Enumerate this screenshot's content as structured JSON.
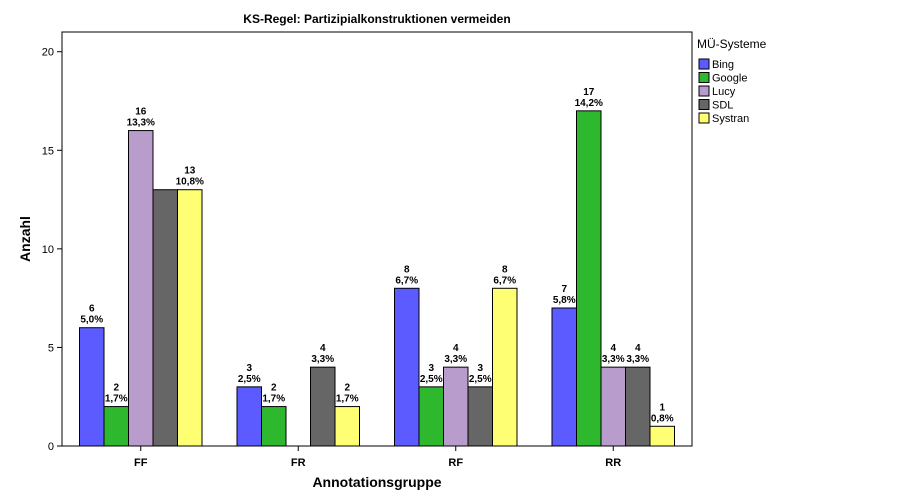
{
  "chart_data": {
    "type": "bar",
    "title": "KS-Regel: Partizipialkonstruktionen vermeiden",
    "xlabel": "Annotationsgruppe",
    "ylabel": "Anzahl",
    "ylim": [
      0,
      21
    ],
    "yticks": [
      0,
      5,
      10,
      15,
      20
    ],
    "categories": [
      "FF",
      "FR",
      "RF",
      "RR"
    ],
    "legend": {
      "title": "MÜ-Systeme",
      "position": "right"
    },
    "series": [
      {
        "name": "Bing",
        "color": "#5b5bff",
        "values": [
          6,
          3,
          8,
          7
        ],
        "labels": [
          "5,0%",
          "2,5%",
          "6,7%",
          "5,8%"
        ]
      },
      {
        "name": "Google",
        "color": "#2eb82e",
        "values": [
          2,
          2,
          3,
          17
        ],
        "labels": [
          "1,7%",
          "1,7%",
          "2,5%",
          "14,2%"
        ]
      },
      {
        "name": "Lucy",
        "color": "#b89ccc",
        "values": [
          16,
          0,
          4,
          4
        ],
        "labels": [
          "13,3%",
          "",
          "3,3%",
          "3,3%"
        ]
      },
      {
        "name": "SDL",
        "color": "#666666",
        "values": [
          13,
          4,
          3,
          4
        ],
        "labels": [
          "",
          "3,3%",
          "2,5%",
          "3,3%"
        ]
      },
      {
        "name": "Systran",
        "color": "#ffff73",
        "values": [
          13,
          2,
          8,
          1
        ],
        "labels": [
          "10,8%",
          "1,7%",
          "6,7%",
          "0,8%"
        ]
      }
    ],
    "show_label": [
      [
        true,
        true,
        true,
        true
      ],
      [
        true,
        true,
        true,
        true
      ],
      [
        true,
        false,
        true,
        true
      ],
      [
        false,
        true,
        true,
        true
      ],
      [
        true,
        true,
        true,
        true
      ]
    ]
  }
}
